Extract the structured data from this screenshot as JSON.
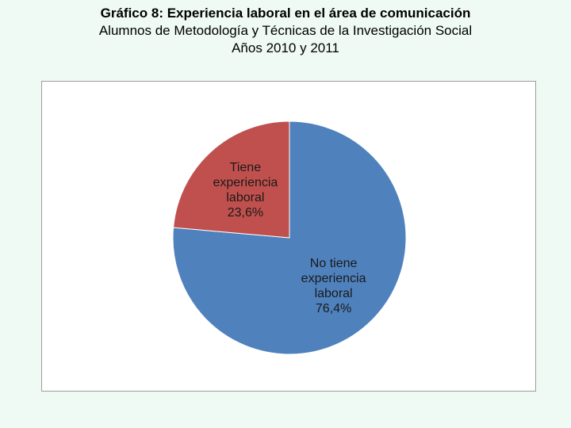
{
  "header": {
    "title": "Gráfico 8: Experiencia laboral en el área de comunicación",
    "subtitle": "Alumnos de Metodología y Técnicas de la Investigación Social",
    "years": "Años 2010 y 2011"
  },
  "chart_data": {
    "type": "pie",
    "title": "Gráfico 8: Experiencia laboral en el área de comunicación",
    "subtitle": "Alumnos de Metodología y Técnicas de la Investigación Social Años 2010 y 2011",
    "slices": [
      {
        "label": "No tiene experiencia laboral",
        "value": 76.4,
        "value_label": "76,4%",
        "label_lines": [
          "No tiene",
          "experiencia",
          "laboral",
          "76,4%"
        ],
        "color": "#4f81bd"
      },
      {
        "label": "Tiene experiencia laboral",
        "value": 23.6,
        "value_label": "23,6%",
        "label_lines": [
          "Tiene",
          "experiencia",
          "laboral",
          "23,6%"
        ],
        "color": "#c0504d"
      }
    ],
    "start_angle_deg": 0,
    "direction": "clockwise",
    "legend": "none"
  }
}
